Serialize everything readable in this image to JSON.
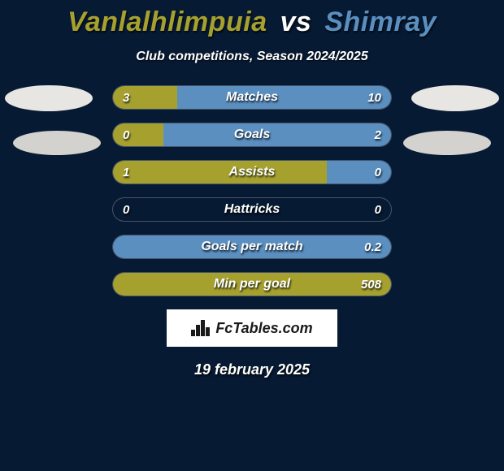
{
  "title": {
    "player1": "Vanlalhlimpuia",
    "vs": "vs",
    "player2": "Shimray",
    "player1_color": "#a6a12f",
    "vs_color": "#ffffff",
    "player2_color": "#5a8fc0"
  },
  "subtitle": "Club competitions, Season 2024/2025",
  "colors": {
    "background": "#071a33",
    "left_fill": "#a6a12f",
    "right_fill": "#5a8fc0",
    "bar_border": "rgba(255,255,255,0.25)",
    "text": "#ffffff"
  },
  "bars_container_width": 344,
  "rows": [
    {
      "label": "Matches",
      "left_val": "3",
      "right_val": "10",
      "left_pct": 23,
      "right_pct": 77
    },
    {
      "label": "Goals",
      "left_val": "0",
      "right_val": "2",
      "left_pct": 18,
      "right_pct": 82
    },
    {
      "label": "Assists",
      "left_val": "1",
      "right_val": "0",
      "left_pct": 77,
      "right_pct": 23
    },
    {
      "label": "Hattricks",
      "left_val": "0",
      "right_val": "0",
      "left_pct": 0,
      "right_pct": 0
    },
    {
      "label": "Goals per match",
      "left_val": "",
      "right_val": "0.2",
      "left_pct": 0,
      "right_pct": 100
    },
    {
      "label": "Min per goal",
      "left_val": "",
      "right_val": "508",
      "left_pct": 100,
      "right_pct": 0
    }
  ],
  "badge": {
    "text": "FcTables.com"
  },
  "date": "19 february 2025"
}
